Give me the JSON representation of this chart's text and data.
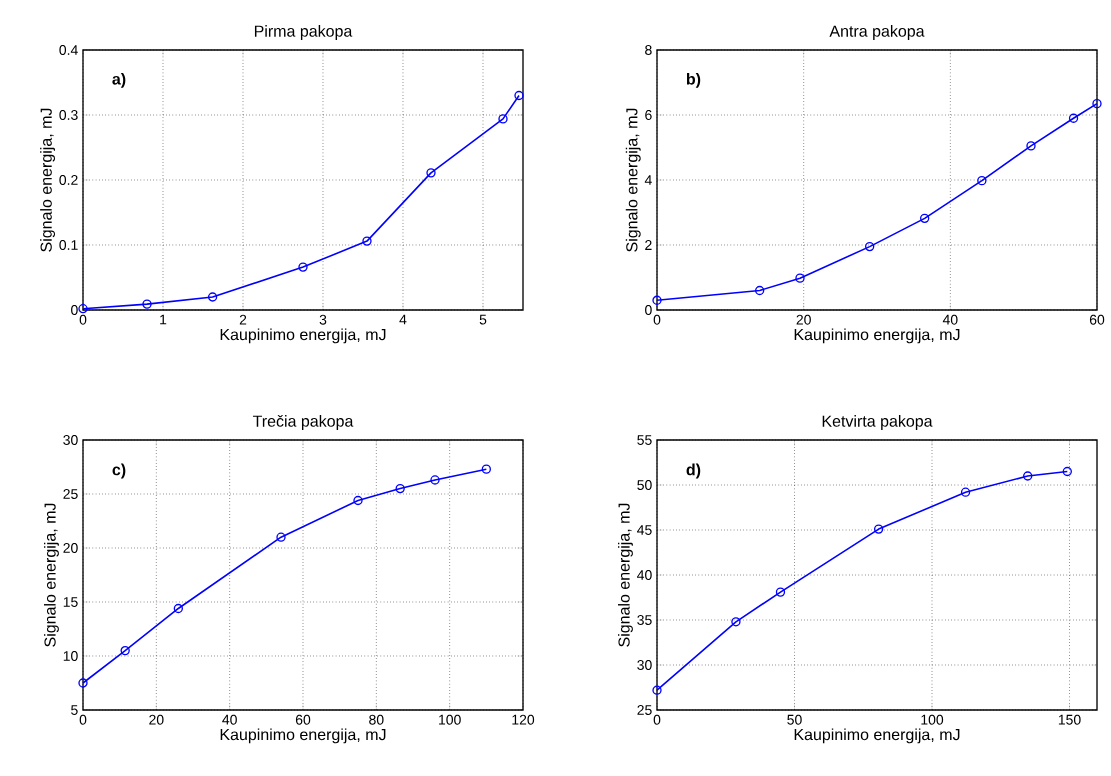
{
  "chart_data": [
    {
      "type": "line",
      "title": "Pirma pakopa",
      "xlabel": "Kaupinimo energija, mJ",
      "ylabel": "Signalo energija, mJ",
      "annotations": [
        "a)"
      ],
      "x": [
        0,
        0.8,
        1.62,
        2.75,
        3.55,
        4.35,
        5.25,
        5.45
      ],
      "series": [
        {
          "color": "#0000ff",
          "values": [
            0.002,
            0.009,
            0.02,
            0.066,
            0.106,
            0.211,
            0.294,
            0.33
          ]
        }
      ],
      "xlim": [
        0,
        5.5
      ],
      "ylim": [
        0,
        0.4
      ],
      "xticks": [
        0,
        1,
        2,
        3,
        4,
        5
      ],
      "yticks": [
        0,
        0.1,
        0.2,
        0.3,
        0.4
      ],
      "grid": true,
      "marker": "circle"
    },
    {
      "type": "line",
      "title": "Antra pakopa",
      "xlabel": "Kaupinimo energija, mJ",
      "ylabel": "Signalo energija, mJ",
      "annotations": [
        "b)"
      ],
      "x": [
        0,
        14,
        19.5,
        29,
        36.5,
        44.3,
        51,
        56.8,
        60
      ],
      "series": [
        {
          "color": "#0000ff",
          "values": [
            0.3,
            0.6,
            0.98,
            1.95,
            2.82,
            3.98,
            5.05,
            5.9,
            6.35
          ]
        }
      ],
      "xlim": [
        0,
        60
      ],
      "ylim": [
        0,
        8
      ],
      "xticks": [
        0,
        20,
        40,
        60
      ],
      "yticks": [
        0,
        2,
        4,
        6,
        8
      ],
      "grid": true,
      "marker": "circle"
    },
    {
      "type": "line",
      "title": "Trečia pakopa",
      "xlabel": "Kaupinimo energija, mJ",
      "ylabel": "Signalo energija, mJ",
      "annotations": [
        "c)"
      ],
      "x": [
        0,
        11.5,
        26,
        54,
        75,
        86.5,
        96,
        110
      ],
      "series": [
        {
          "color": "#0000ff",
          "values": [
            7.5,
            10.5,
            14.4,
            21,
            24.4,
            25.5,
            26.3,
            27.3
          ]
        }
      ],
      "xlim": [
        0,
        120
      ],
      "ylim": [
        5,
        30
      ],
      "xticks": [
        0,
        20,
        40,
        60,
        80,
        100,
        120
      ],
      "yticks": [
        5,
        10,
        15,
        20,
        25,
        30
      ],
      "grid": true,
      "marker": "circle"
    },
    {
      "type": "line",
      "title": "Ketvirta pakopa",
      "xlabel": "Kaupinimo energija, mJ",
      "ylabel": "Signalo energija, mJ",
      "annotations": [
        "d)"
      ],
      "x": [
        0,
        28.7,
        44.9,
        80.6,
        112.2,
        134.8,
        149.2
      ],
      "series": [
        {
          "color": "#0000ff",
          "values": [
            27.2,
            34.8,
            38.1,
            45.1,
            49.2,
            51,
            51.5
          ]
        }
      ],
      "xlim": [
        0,
        160
      ],
      "ylim": [
        25,
        55
      ],
      "xticks": [
        0,
        50,
        100,
        150
      ],
      "yticks": [
        25,
        30,
        35,
        40,
        45,
        50,
        55
      ],
      "grid": true,
      "marker": "circle"
    }
  ]
}
